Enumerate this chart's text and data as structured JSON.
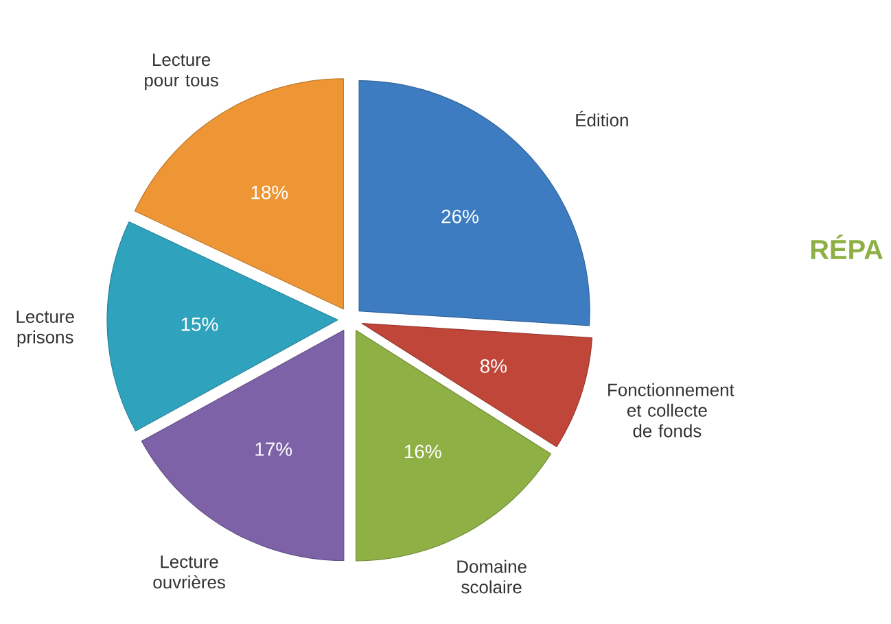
{
  "chart_data": {
    "type": "pie",
    "title": "RÉPA",
    "categories": [
      "Édition",
      "Fonctionnement et collecte de fonds",
      "Domaine scolaire",
      "Lecture ouvrières",
      "Lecture prisons",
      "Lecture pour tous"
    ],
    "values": [
      26,
      8,
      16,
      17,
      15,
      18
    ],
    "value_labels": [
      "26%",
      "8%",
      "16%",
      "17%",
      "15%",
      "18%"
    ],
    "colors": [
      "#3d7cc0",
      "#c0463a",
      "#8fb044",
      "#7d62a8",
      "#2fa3bd",
      "#ee9635"
    ],
    "legend": false
  }
}
